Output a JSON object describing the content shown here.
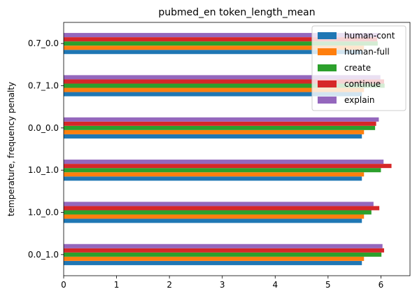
{
  "chart_data": {
    "type": "bar",
    "orientation": "horizontal",
    "title": "pubmed_en token_length_mean",
    "xlabel": "",
    "ylabel": "temperature, frequency penalty",
    "xlim": [
      0,
      6.55
    ],
    "xticks": [
      0,
      1,
      2,
      3,
      4,
      5,
      6
    ],
    "grid": false,
    "legend_position": "top-right",
    "categories": [
      "0.0_1.0",
      "1.0_0.0",
      "1.0_1.0",
      "0.0_0.0",
      "0.7_1.0",
      "0.7_0.0"
    ],
    "series": [
      {
        "name": "human-cont",
        "color": "#1f77b4",
        "values": [
          5.64,
          5.64,
          5.64,
          5.64,
          5.64,
          5.64
        ]
      },
      {
        "name": "human-full",
        "color": "#ff7f0e",
        "values": [
          5.68,
          5.68,
          5.68,
          5.68,
          5.68,
          5.68
        ]
      },
      {
        "name": "create",
        "color": "#2ca02c",
        "values": [
          6.01,
          5.82,
          6.0,
          5.89,
          6.07,
          5.94
        ]
      },
      {
        "name": "continue",
        "color": "#d62728",
        "values": [
          6.06,
          5.97,
          6.2,
          5.91,
          6.06,
          5.93
        ]
      },
      {
        "name": "explain",
        "color": "#9467bd",
        "values": [
          6.03,
          5.86,
          6.05,
          5.96,
          5.99,
          5.97
        ]
      }
    ]
  }
}
